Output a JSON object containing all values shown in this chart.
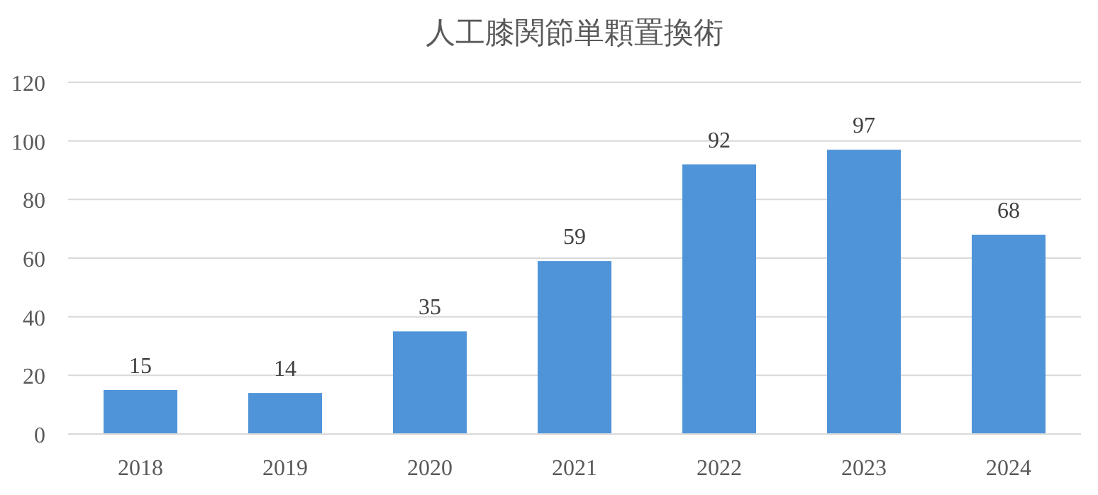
{
  "chart_data": {
    "type": "bar",
    "title": "人工膝関節単顆置換術",
    "categories": [
      "2018",
      "2019",
      "2020",
      "2021",
      "2022",
      "2023",
      "2024"
    ],
    "values": [
      15,
      14,
      35,
      59,
      92,
      97,
      68
    ],
    "color": "#4f94d9",
    "ylim": [
      0,
      120
    ],
    "yticks": [
      0,
      20,
      40,
      60,
      80,
      100,
      120
    ],
    "grid": "y",
    "data_labels": true
  }
}
